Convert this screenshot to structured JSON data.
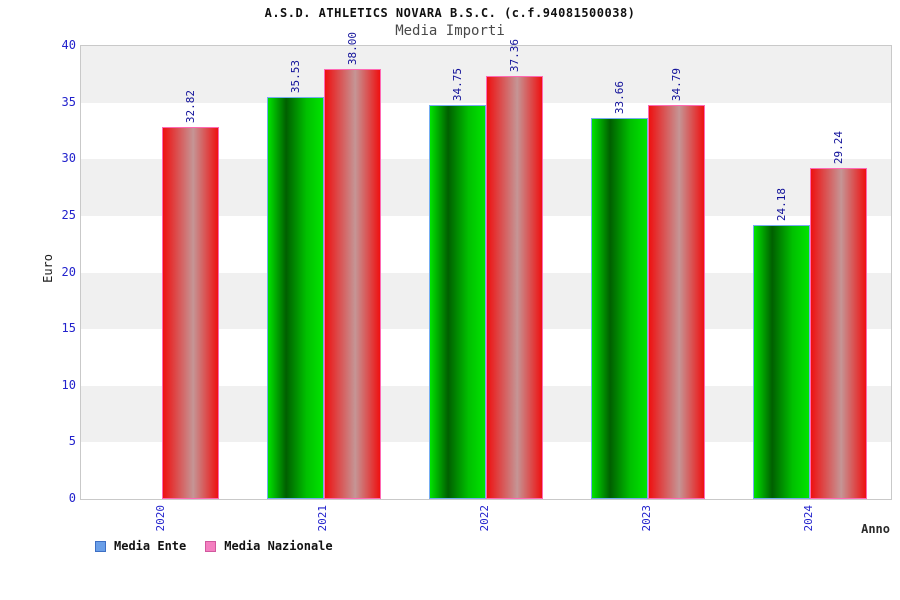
{
  "chart_data": {
    "type": "bar",
    "title": "A.S.D. ATHLETICS NOVARA B.S.C. (c.f.94081500038)",
    "subtitle": "Media Importi",
    "xlabel": "Anno",
    "ylabel": "Euro",
    "ylim": [
      0,
      40
    ],
    "ytick_step": 5,
    "yticks": [
      0,
      5,
      10,
      15,
      20,
      25,
      30,
      35,
      40
    ],
    "categories": [
      "2020",
      "2021",
      "2022",
      "2023",
      "2024"
    ],
    "series": [
      {
        "name": "Media Ente",
        "values": [
          null,
          35.53,
          34.75,
          33.66,
          24.18
        ],
        "labels": [
          "",
          "35.53",
          "34.75",
          "33.66",
          "24.18"
        ],
        "style": "ente"
      },
      {
        "name": "Media Nazionale",
        "values": [
          32.82,
          38.0,
          37.36,
          34.79,
          29.24
        ],
        "labels": [
          "32.82",
          "38.00",
          "37.36",
          "34.79",
          "29.24"
        ],
        "style": "nazionale"
      }
    ],
    "legend": [
      {
        "label": "Media Ente",
        "swatch": "#6a9fe8",
        "swatch_border": "#3d6fc4"
      },
      {
        "label": "Media Nazionale",
        "swatch": "#f47fc0",
        "swatch_border": "#d1589e"
      }
    ],
    "legend_position": "bottom-left",
    "grid": "alternating-horizontal-bands"
  },
  "colors": {
    "bar_ente_edge": "#00e400",
    "bar_ente_dark": "#005f00",
    "bar_ente_mid": "#00c000",
    "bar_ente_border": "#76acf1",
    "bar_naz_edge": "#ee1111",
    "bar_naz_light": "#c59595",
    "bar_naz_border": "#ff69b4",
    "band_gray": "#f0f0f0",
    "band_white": "#ffffff",
    "plot_border": "#c9c9c9",
    "axis_tick_text": "#2222cc",
    "value_label_text": "#111199",
    "title_text": "#101010",
    "subtitle_text": "#4a4a4a"
  }
}
